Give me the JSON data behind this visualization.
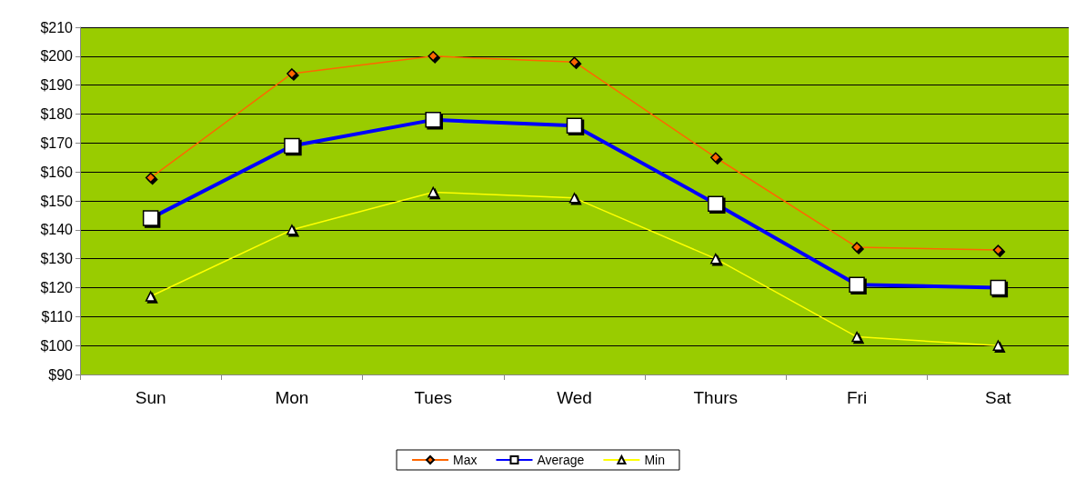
{
  "chart_data": {
    "type": "line",
    "categories": [
      "Sun",
      "Mon",
      "Tues",
      "Wed",
      "Thurs",
      "Fri",
      "Sat"
    ],
    "series": [
      {
        "name": "Max",
        "color": "#ff6600",
        "marker": "diamond",
        "values": [
          158,
          194,
          200,
          198,
          165,
          134,
          133
        ]
      },
      {
        "name": "Average",
        "color": "#0000ff",
        "marker": "square",
        "values": [
          144,
          169,
          178,
          176,
          149,
          121,
          120
        ]
      },
      {
        "name": "Min",
        "color": "#ffff00",
        "marker": "triangle",
        "values": [
          117,
          140,
          153,
          151,
          130,
          103,
          100
        ]
      }
    ],
    "ylim": [
      90,
      210
    ],
    "yticks": [
      {
        "value": 90,
        "label": "$90"
      },
      {
        "value": 100,
        "label": "$100"
      },
      {
        "value": 110,
        "label": "$110"
      },
      {
        "value": 120,
        "label": "$120"
      },
      {
        "value": 130,
        "label": "$130"
      },
      {
        "value": 140,
        "label": "$140"
      },
      {
        "value": 150,
        "label": "$150"
      },
      {
        "value": 160,
        "label": "$160"
      },
      {
        "value": 170,
        "label": "$170"
      },
      {
        "value": 180,
        "label": "$180"
      },
      {
        "value": 190,
        "label": "$190"
      },
      {
        "value": 200,
        "label": "$200"
      },
      {
        "value": 210,
        "label": "$210"
      }
    ],
    "grid": "y",
    "legend": "bottom",
    "line_style": "solid"
  }
}
